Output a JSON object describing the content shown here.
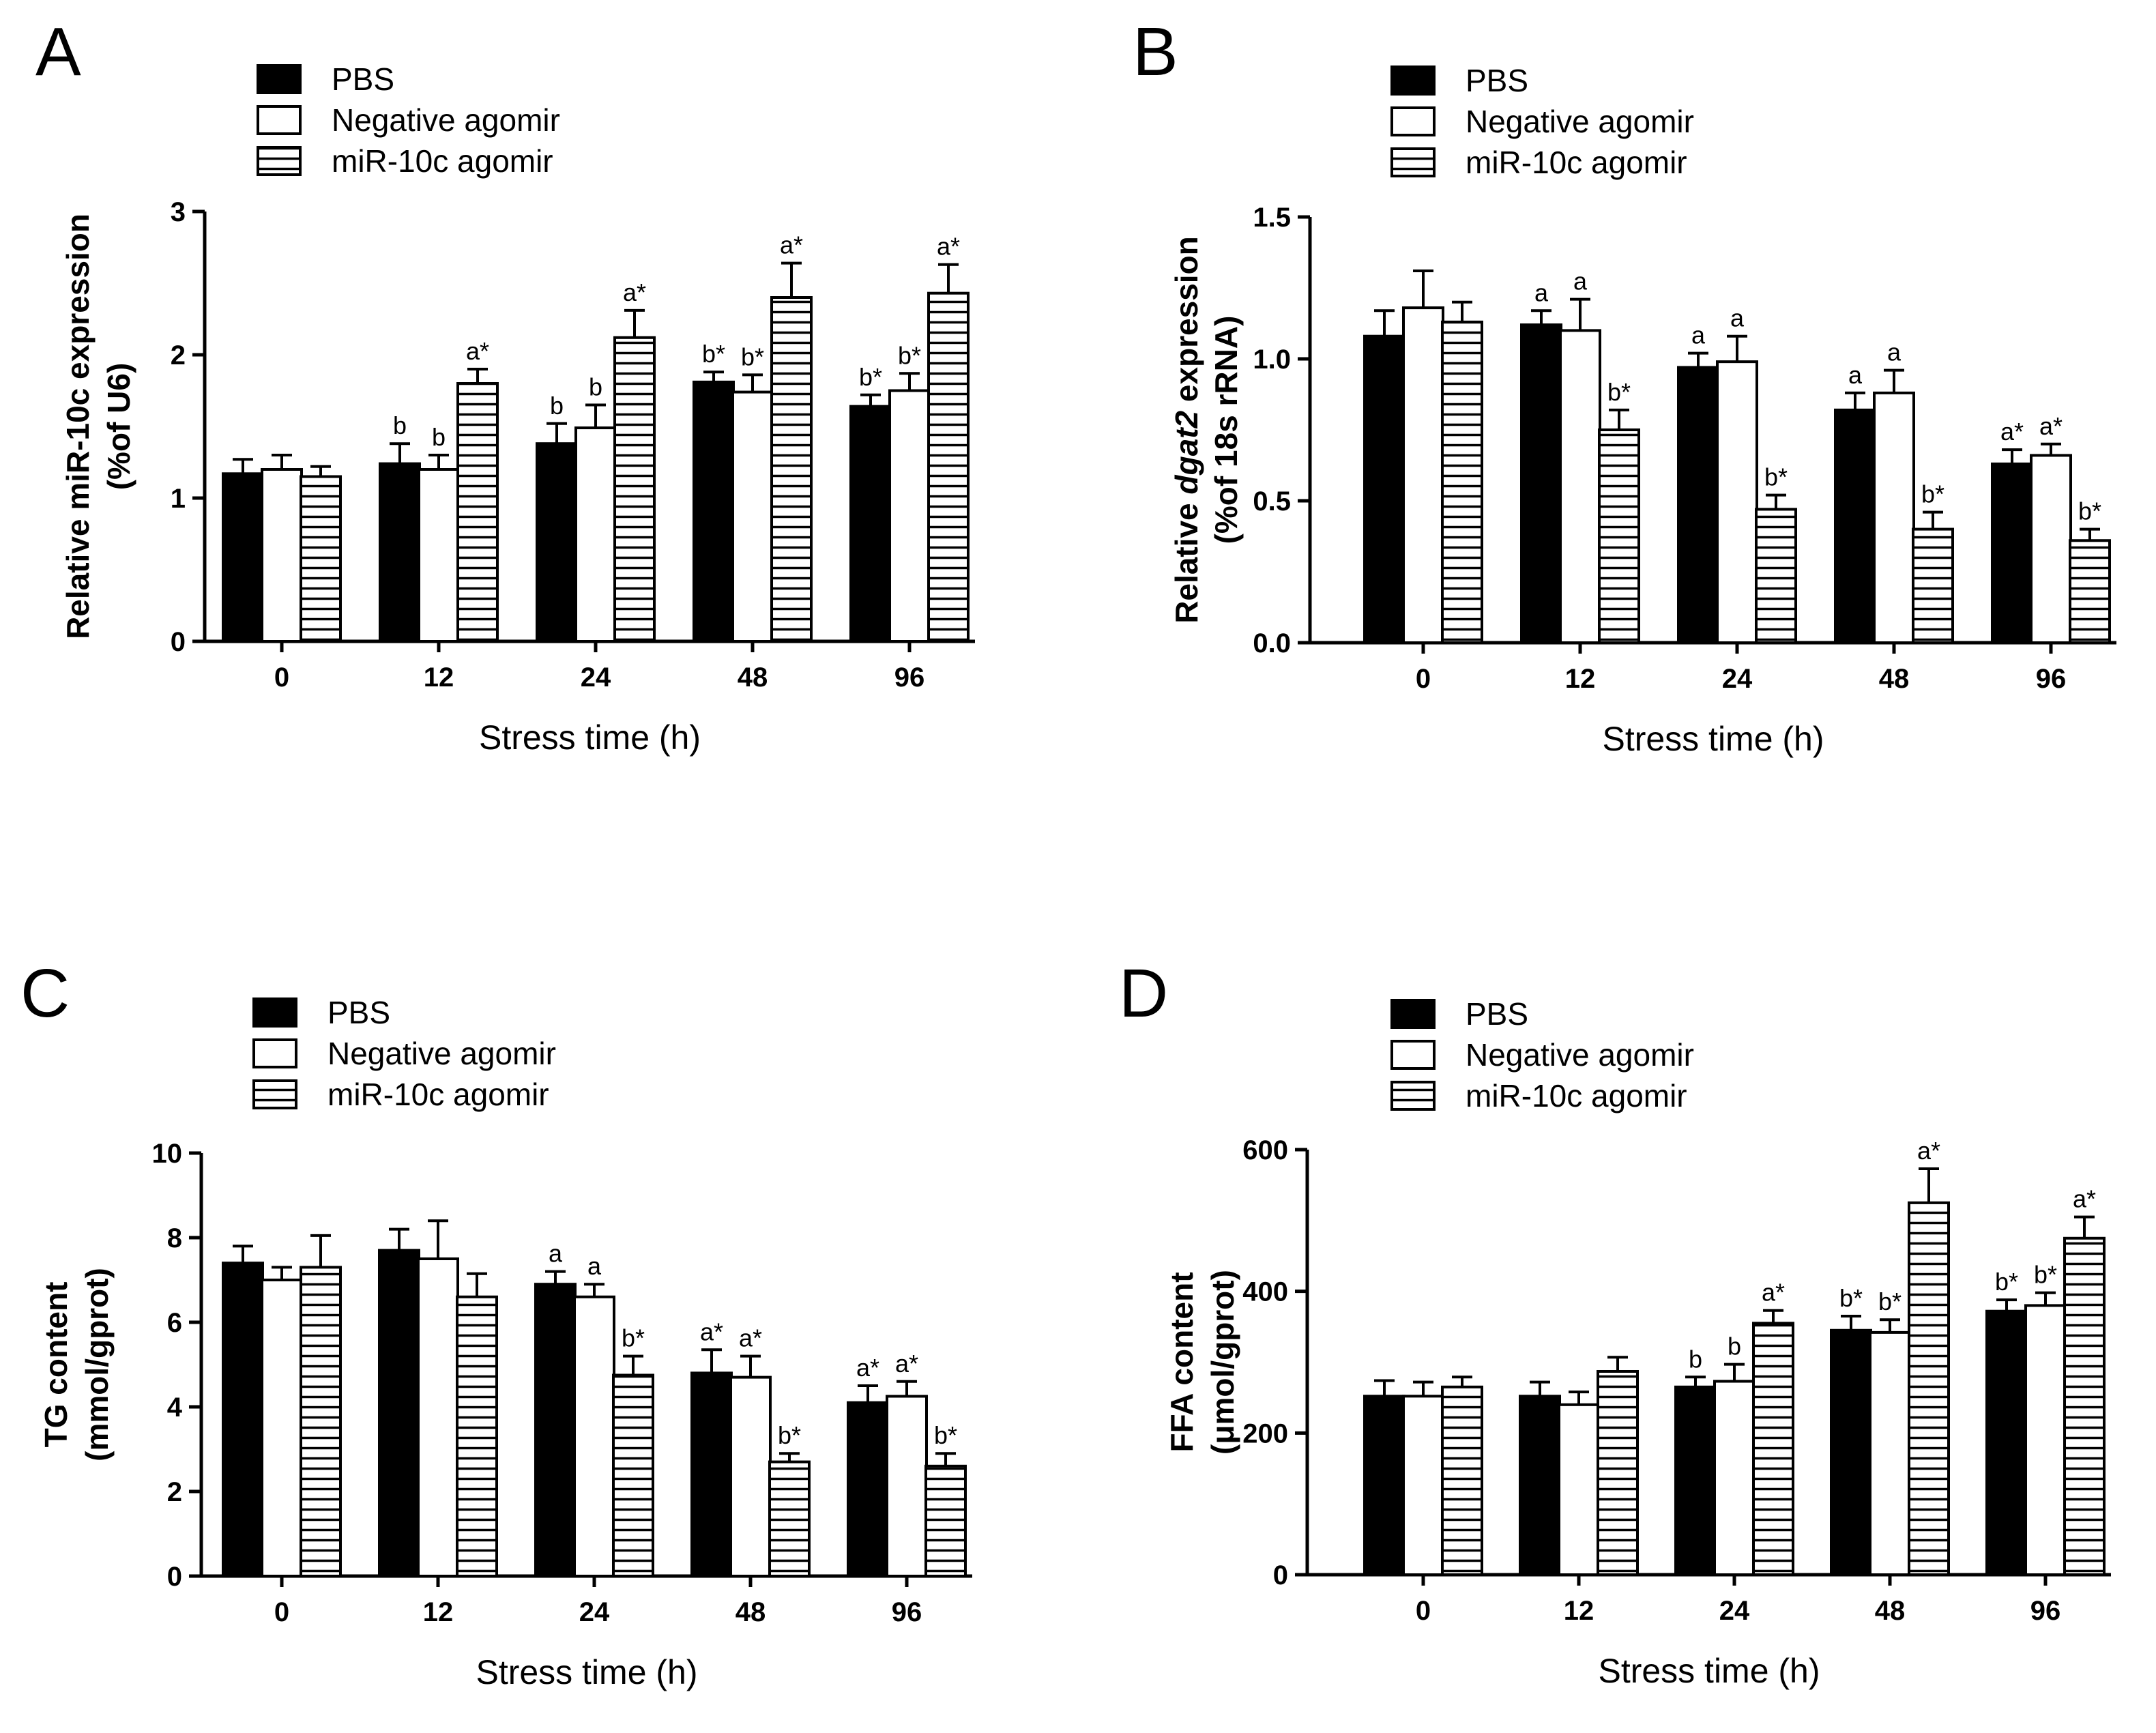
{
  "legend_swatches": {
    "PBS": "#000000",
    "Negative agomir": "#ffffff",
    "miR-10c agomir": "hatched-horizontal"
  },
  "chart_data": [
    {
      "type": "bar",
      "panel_letter": "A",
      "categories": [
        "0",
        "12",
        "24",
        "48",
        "96"
      ],
      "xlabel": "Stress time (h)",
      "ylabel_line1": "Relative miR-10c expression",
      "ylabel_line2": "(%of U6)",
      "ylim": [
        0,
        3
      ],
      "yticks": [
        "0",
        "1",
        "2",
        "3"
      ],
      "grid": false,
      "legend_position": "top-left",
      "series": [
        {
          "name": "PBS",
          "values": [
            1.17,
            1.24,
            1.38,
            1.81,
            1.64
          ],
          "errors": [
            0.1,
            0.14,
            0.14,
            0.07,
            0.08
          ],
          "labels": [
            "",
            "b",
            "b",
            "b*",
            "b*"
          ]
        },
        {
          "name": "Negative agomir",
          "values": [
            1.2,
            1.2,
            1.49,
            1.74,
            1.75
          ],
          "errors": [
            0.1,
            0.1,
            0.16,
            0.12,
            0.12
          ],
          "labels": [
            "",
            "b",
            "b",
            "b*",
            "b*"
          ]
        },
        {
          "name": "miR-10c agomir",
          "values": [
            1.15,
            1.8,
            2.12,
            2.4,
            2.43
          ],
          "errors": [
            0.07,
            0.1,
            0.19,
            0.24,
            0.2
          ],
          "labels": [
            "",
            "a*",
            "a*",
            "a*",
            "a*"
          ]
        }
      ]
    },
    {
      "type": "bar",
      "panel_letter": "B",
      "categories": [
        "0",
        "12",
        "24",
        "48",
        "96"
      ],
      "xlabel": "Stress time (h)",
      "ylabel_line1_pre": "Relative ",
      "ylabel_line1_italic": "dgat2",
      "ylabel_line1_post": " expression",
      "ylabel_line2": "(%of 18s rRNA)",
      "ylim": [
        0,
        1.5
      ],
      "yticks": [
        "0.0",
        "0.5",
        "1.0",
        "1.5"
      ],
      "grid": false,
      "legend_position": "top-left",
      "series": [
        {
          "name": "PBS",
          "values": [
            1.08,
            1.12,
            0.97,
            0.82,
            0.63
          ],
          "errors": [
            0.09,
            0.05,
            0.05,
            0.06,
            0.05
          ],
          "labels": [
            "",
            "a",
            "a",
            "a",
            "a*"
          ]
        },
        {
          "name": "Negative agomir",
          "values": [
            1.18,
            1.1,
            0.99,
            0.88,
            0.66
          ],
          "errors": [
            0.13,
            0.11,
            0.09,
            0.08,
            0.04
          ],
          "labels": [
            "",
            "a",
            "a",
            "a",
            "a*"
          ]
        },
        {
          "name": "miR-10c agomir",
          "values": [
            1.13,
            0.75,
            0.47,
            0.4,
            0.36
          ],
          "errors": [
            0.07,
            0.07,
            0.05,
            0.06,
            0.04
          ],
          "labels": [
            "",
            "b*",
            "b*",
            "b*",
            "b*"
          ]
        }
      ]
    },
    {
      "type": "bar",
      "panel_letter": "C",
      "categories": [
        "0",
        "12",
        "24",
        "48",
        "96"
      ],
      "xlabel": "Stress time (h)",
      "ylabel_line1": "TG content",
      "ylabel_line2": "(mmol/gprot)",
      "ylim": [
        0,
        10
      ],
      "yticks": [
        "0",
        "2",
        "4",
        "6",
        "8",
        "10"
      ],
      "grid": false,
      "legend_position": "top-left",
      "series": [
        {
          "name": "PBS",
          "values": [
            7.4,
            7.7,
            6.9,
            4.8,
            4.1
          ],
          "errors": [
            0.4,
            0.5,
            0.3,
            0.55,
            0.4
          ],
          "labels": [
            "",
            "",
            "a",
            "a*",
            "a*"
          ]
        },
        {
          "name": "Negative agomir",
          "values": [
            7.0,
            7.5,
            6.6,
            4.7,
            4.25
          ],
          "errors": [
            0.3,
            0.9,
            0.3,
            0.5,
            0.35
          ],
          "labels": [
            "",
            "",
            "a",
            "a*",
            "a*"
          ]
        },
        {
          "name": "miR-10c agomir",
          "values": [
            7.3,
            6.6,
            4.75,
            2.7,
            2.6
          ],
          "errors": [
            0.75,
            0.55,
            0.45,
            0.2,
            0.3
          ],
          "labels": [
            "",
            "",
            "b*",
            "b*",
            "b*"
          ]
        }
      ]
    },
    {
      "type": "bar",
      "panel_letter": "D",
      "categories": [
        "0",
        "12",
        "24",
        "48",
        "96"
      ],
      "xlabel": "Stress time (h)",
      "ylabel_line1": "FFA content",
      "ylabel_line2": "(μmol/gprot)",
      "ylim": [
        0,
        600
      ],
      "yticks": [
        "0",
        "200",
        "400",
        "600"
      ],
      "grid": false,
      "legend_position": "top-left",
      "series": [
        {
          "name": "PBS",
          "values": [
            252,
            252,
            265,
            345,
            372
          ],
          "errors": [
            22,
            20,
            14,
            20,
            16
          ],
          "labels": [
            "",
            "",
            "b",
            "b*",
            "b*"
          ]
        },
        {
          "name": "Negative agomir",
          "values": [
            252,
            240,
            273,
            342,
            380
          ],
          "errors": [
            20,
            18,
            24,
            18,
            18
          ],
          "labels": [
            "",
            "",
            "b",
            "b*",
            "b*"
          ]
        },
        {
          "name": "miR-10c agomir",
          "values": [
            265,
            287,
            355,
            525,
            475
          ],
          "errors": [
            14,
            20,
            18,
            48,
            30
          ],
          "labels": [
            "",
            "",
            "a*",
            "a*",
            "a*"
          ]
        }
      ]
    }
  ]
}
